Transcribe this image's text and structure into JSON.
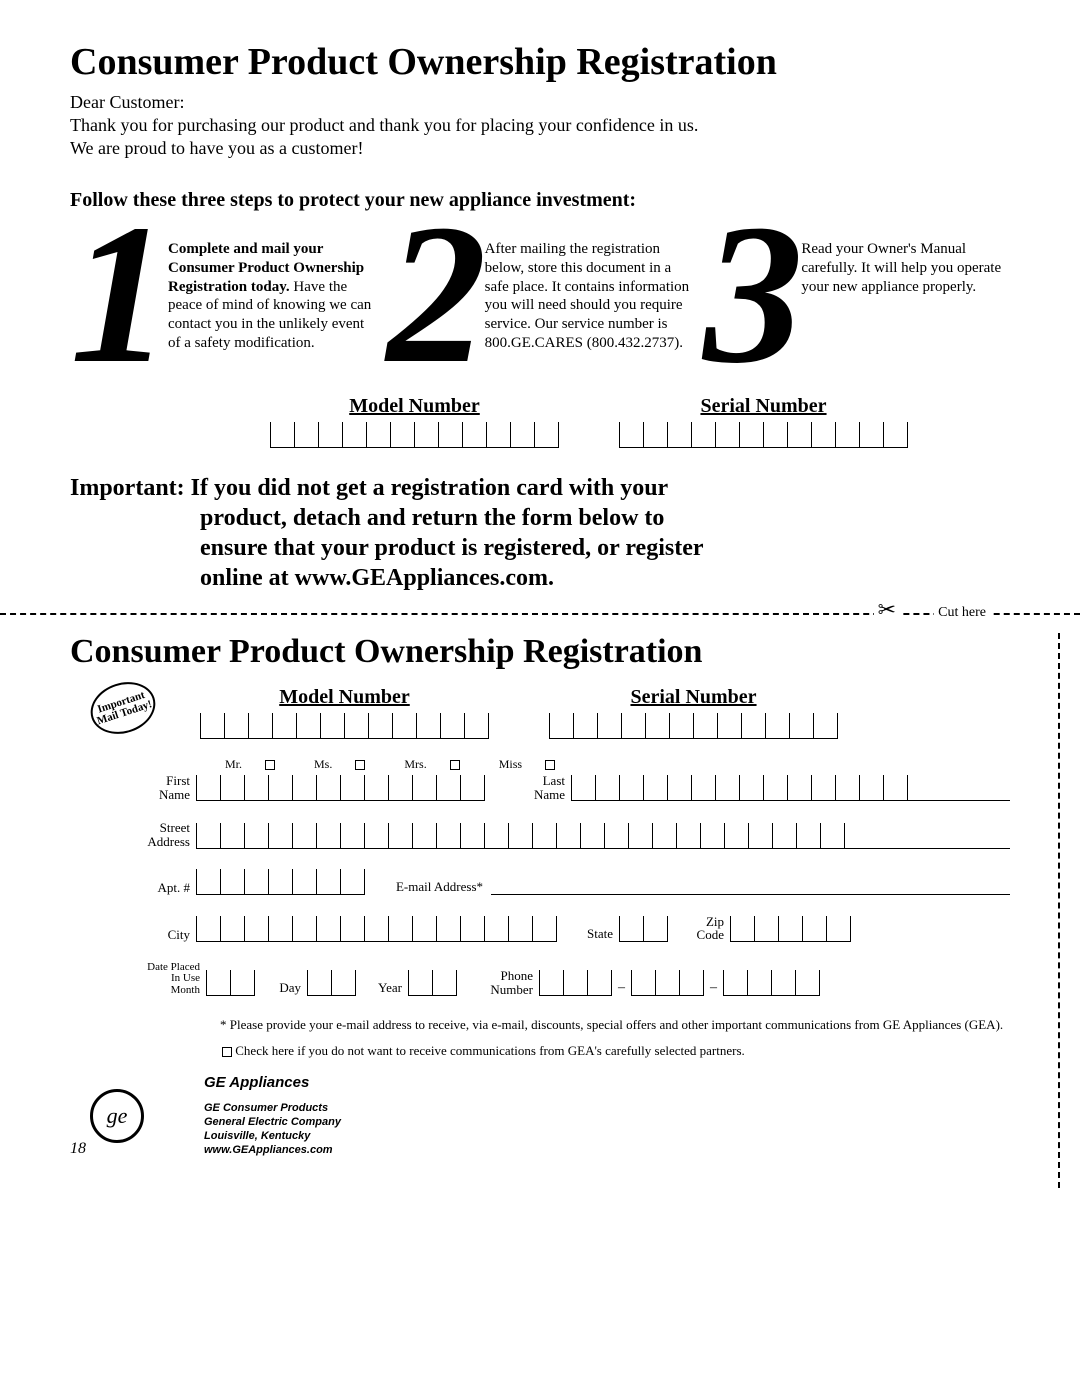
{
  "title": "Consumer Product Ownership Registration",
  "greeting": "Dear Customer:",
  "thanks1": "Thank you for purchasing our product and thank you for placing your confidence in us.",
  "thanks2": "We are proud to have you as a customer!",
  "subhead": "Follow these three steps to protect your new appliance investment:",
  "steps": {
    "n1": "1",
    "n2": "2",
    "n3": "3",
    "t1bold": "Complete and mail your Consumer Product Ownership Registration today.",
    "t1rest": " Have the peace of mind of knowing we can contact you in the unlikely event of a safety modification.",
    "t2": "After mailing the registration below, store this document in a safe place. It contains information you will need should you require service. Our service number is 800.GE.CARES (800.432.2737).",
    "t3": "Read your Owner's Manual carefully. It will help you operate your new appliance properly."
  },
  "labels": {
    "model": "Model Number",
    "serial": "Serial Number",
    "cuthere": "Cut here",
    "first": "First Name",
    "last": "Last Name",
    "street": "Street Address",
    "apt": "Apt. #",
    "email": "E-mail Address*",
    "city": "City",
    "state": "State",
    "zip": "Zip Code",
    "date": "Date Placed In Use",
    "month": "Month",
    "day": "Day",
    "year": "Year",
    "phone": "Phone Number",
    "mr": "Mr.",
    "ms": "Ms.",
    "mrs": "Mrs.",
    "miss": "Miss"
  },
  "important": {
    "label": "Important:",
    "l1": " If you did not get a registration card with your",
    "l2": "product, detach and return the form below to",
    "l3": "ensure that your product is registered, or register",
    "l4": "online at www.GEAppliances.com."
  },
  "stamp": "Important Mail Today!",
  "disclaimer1": "* Please provide your e-mail address to receive, via e-mail, discounts, special offers and other important communications from GE Appliances (GEA).",
  "disclaimer2": " Check here if you do not want to receive communications from GEA's carefully selected partners.",
  "brand": "GE Appliances",
  "company": {
    "l1": "GE Consumer Products",
    "l2": "General Electric Company",
    "l3": "Louisville, Kentucky",
    "l4": "www.GEAppliances.com"
  },
  "page": "18",
  "boxes": {
    "model": 12,
    "serial": 12,
    "first": 12,
    "last": 14,
    "street": 27,
    "apt": 7,
    "city": 15,
    "state": 2,
    "zip": 5,
    "dmy": 2,
    "yr": 2,
    "ph1": 3,
    "ph2": 3,
    "ph3": 4
  }
}
